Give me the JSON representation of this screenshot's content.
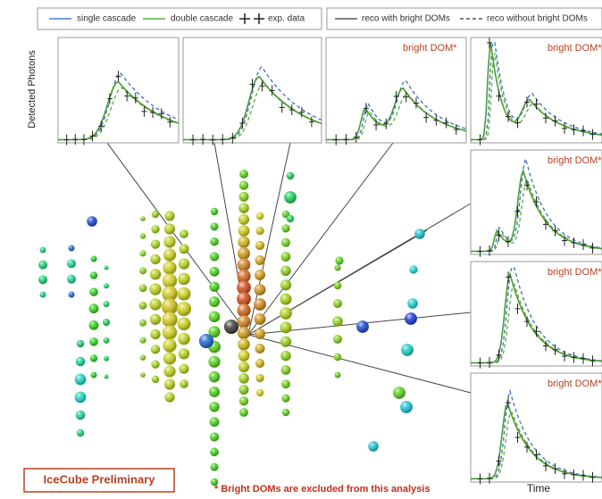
{
  "legend": {
    "items": [
      "single cascade",
      "double cascade",
      "exp. data",
      "reco with bright DOMs",
      "reco without bright DOMs"
    ]
  },
  "y_axis_label": "Detected Photons",
  "x_axis_label": "Time",
  "bright_dom_labels": [
    "bright DOM*",
    "bright DOM*",
    "bright DOM*",
    "bright DOM*",
    "bright DOM*"
  ],
  "badge": "IceCube Preliminary",
  "footnote": "* Bright DOMs are excluded from this analysis"
}
